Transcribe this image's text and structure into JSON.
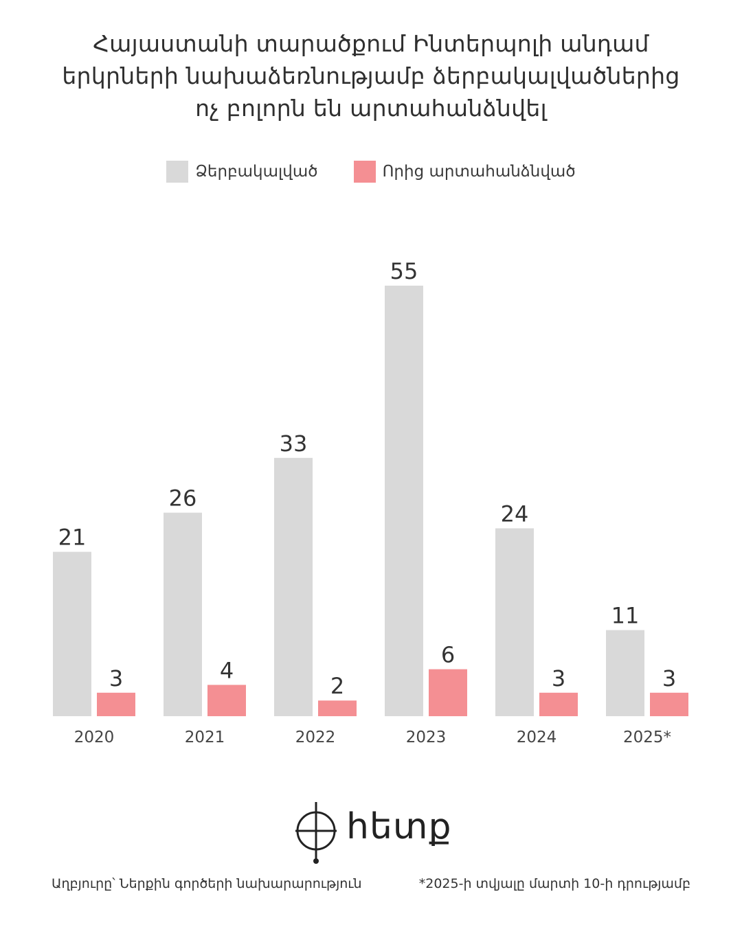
{
  "title_lines": [
    "Հայաստանի տարածքում Ինտերպոլի անդամ",
    "երկրների նախաձեռնությամբ ձերբակալվածներից",
    "ոչ բոլորն են արտահանձնվել"
  ],
  "legend": [
    {
      "label": "Ձերբակալված",
      "color": "#d9d9d9"
    },
    {
      "label": "Որից արտահանձնված",
      "color": "#f48f93"
    }
  ],
  "chart_data": {
    "type": "bar",
    "categories": [
      "2020",
      "2021",
      "2022",
      "2023",
      "2024",
      "2025*"
    ],
    "series": [
      {
        "name": "Ձերբակալված",
        "values": [
          21,
          26,
          33,
          55,
          24,
          11
        ],
        "color": "#d9d9d9"
      },
      {
        "name": "Որից արտահանձնված",
        "values": [
          3,
          4,
          2,
          6,
          3,
          3
        ],
        "color": "#f48f93"
      }
    ],
    "ylim": [
      0,
      55
    ],
    "grid": false,
    "legend_position": "top"
  },
  "logo_text": "hետք",
  "footer": {
    "source": "Աղբյուրը՝ Ներքին գործերի նախարարություն",
    "note": "*2025-ի տվյալը մարտի 10-ի դրությամբ"
  }
}
